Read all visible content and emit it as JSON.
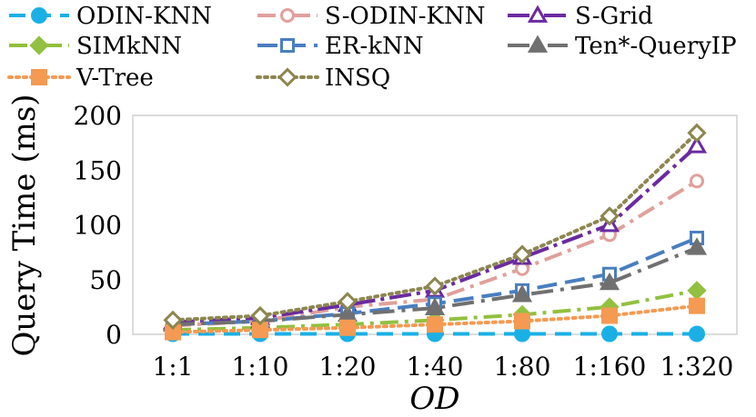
{
  "chart_data": {
    "type": "line",
    "categories": [
      "1:1",
      "1:10",
      "1:20",
      "1:40",
      "1:80",
      "1:160",
      "1:320"
    ],
    "xlabel": "OD",
    "ylabel": "Query Time (ms)",
    "ylim": [
      0,
      200
    ],
    "yticks": [
      0,
      50,
      100,
      150,
      200
    ],
    "grid": false,
    "legend_position": "top",
    "series": [
      {
        "name": "ODIN-KNN",
        "values": [
          0.4,
          0.4,
          0.4,
          0.4,
          0.4,
          0.4,
          0.4
        ],
        "color": "#1ab0e6",
        "dash": "18,10",
        "marker": "circle-filled"
      },
      {
        "name": "S-ODIN-KNN",
        "values": [
          8,
          12,
          25,
          32,
          60,
          91,
          140
        ],
        "color": "#e0a09c",
        "dash": "20,7,4,7",
        "marker": "circle-open"
      },
      {
        "name": "S-Grid",
        "values": [
          11,
          15,
          27,
          40,
          70,
          100,
          172
        ],
        "color": "#6a2aa0",
        "dash": "24,6,4,6",
        "marker": "triangle-open"
      },
      {
        "name": "SIMkNN",
        "values": [
          4,
          6,
          9,
          13,
          18,
          25,
          40
        ],
        "color": "#92c040",
        "dash": "20,7,4,7",
        "marker": "diamond-filled"
      },
      {
        "name": "ER-kNN",
        "values": [
          9,
          12,
          19,
          28,
          40,
          55,
          88
        ],
        "color": "#4a7ec0",
        "dash": "22,9",
        "marker": "square-open"
      },
      {
        "name": "Ten*-QueryIP",
        "values": [
          9,
          12,
          18,
          24,
          36,
          47,
          79
        ],
        "color": "#707070",
        "dash": "24,8,4,8",
        "marker": "triangle-filled"
      },
      {
        "name": "V-Tree",
        "values": [
          2,
          4,
          6,
          9,
          12,
          17,
          26
        ],
        "color": "#f49a52",
        "dash": "3,5",
        "marker": "square-filled"
      },
      {
        "name": "INSQ",
        "values": [
          13,
          17,
          30,
          44,
          73,
          108,
          184
        ],
        "color": "#8c8650",
        "dash": "3,5",
        "marker": "diamond-open"
      }
    ]
  }
}
